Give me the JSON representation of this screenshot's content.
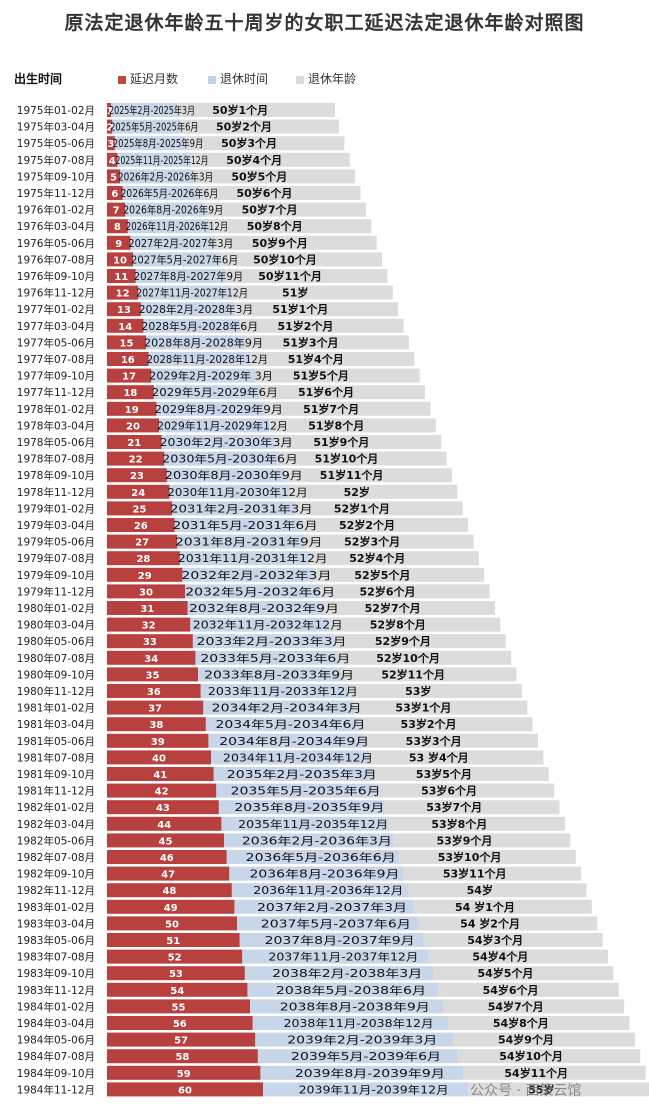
{
  "title": "原法定退休年龄五十周岁的女职工延迟法定退休年龄对照图",
  "legend": {
    "lead": "出生时间",
    "items": [
      {
        "label": "延迟月数",
        "color": "#b94a48"
      },
      {
        "label": "退休时间",
        "color": "#c5d3e6"
      },
      {
        "label": "退休年龄",
        "color": "#d9d9d9"
      }
    ]
  },
  "watermark": "公众号 · 西策云馆",
  "chart_data": {
    "type": "bar",
    "title": "原法定退休年龄五十周岁的女职工延迟法定退休年龄对照图",
    "orientation": "horizontal",
    "stacked": true,
    "categories": [
      "1975年01-02月",
      "1975年03-04月",
      "1975年05-06月",
      "1975年07-08月",
      "1975年09-10月",
      "1975年11-12月",
      "1976年01-02月",
      "1976年03-04月",
      "1976年05-06月",
      "1976年07-08月",
      "1976年09-10月",
      "1976年11-12月",
      "1977年01-02月",
      "1977年03-04月",
      "1977年05-06月",
      "1977年07-08月",
      "1977年09-10月",
      "1977年11-12月",
      "1978年01-02月",
      "1978年03-04月",
      "1978年05-06月",
      "1978年07-08月",
      "1978年09-10月",
      "1978年11-12月",
      "1979年01-02月",
      "1979年03-04月",
      "1979年05-06月",
      "1979年07-08月",
      "1979年09-10月",
      "1979年11-12月",
      "1980年01-02月",
      "1980年03-04月",
      "1980年05-06月",
      "1980年07-08月",
      "1980年09-10月",
      "1980年11-12月",
      "1981年01-02月",
      "1981年03-04月",
      "1981年05-06月",
      "1981年07-08月",
      "1981年09-10月",
      "1981年11-12月",
      "1982年01-02月",
      "1982年03-04月",
      "1982年05-06月",
      "1982年07-08月",
      "1982年09-10月",
      "1982年11-12月",
      "1983年01-02月",
      "1983年03-04月",
      "1983年05-06月",
      "1983年07-08月",
      "1983年09-10月",
      "1983年11-12月",
      "1984年01-02月",
      "1984年03-04月",
      "1984年05-06月",
      "1984年07-08月",
      "1984年09-10月",
      "1984年11-12月"
    ],
    "series": [
      {
        "name": "延迟月数",
        "values": [
          1,
          2,
          3,
          4,
          5,
          6,
          7,
          8,
          9,
          10,
          11,
          12,
          13,
          14,
          15,
          16,
          17,
          18,
          19,
          20,
          21,
          22,
          23,
          24,
          25,
          26,
          27,
          28,
          29,
          30,
          31,
          32,
          33,
          34,
          35,
          36,
          37,
          38,
          39,
          40,
          41,
          42,
          43,
          44,
          45,
          46,
          47,
          48,
          49,
          50,
          51,
          52,
          53,
          54,
          55,
          56,
          57,
          58,
          59,
          60
        ]
      },
      {
        "name": "退休时间",
        "labels": [
          "2025年2月-2025年3月",
          "2025年5月-2025年6月",
          "2025年8月-2025年9月",
          "2025年11月-2025年12月",
          "2026年2月-2026年3月",
          "2026年5月-2026年6月",
          "2026年8月-2026年9月",
          "2026年11月-2026年12月",
          "2027年2月-2027年3月",
          "2027年5月-2027年6月",
          "2027年8月-2027年9月",
          "2027年11月-2027年12月",
          "2028年2月-2028年3月",
          "2028年5月-2028年6月",
          "2028年8月-2028年9月",
          "2028年11月-2028年12月",
          "2029年2月-2029年 3月",
          "2029年5月-2029年6月",
          "2029年8月-2029年9月",
          "2029年11月-2029年12月",
          "2030年2月-2030年3月",
          "2030年5月-2030年6月",
          "2030年8月-2030年9月",
          "2030年11月-2030年12月",
          "2031年2月-2031年3月",
          "2031年5月-2031年6月",
          "2031年8月-2031年9月",
          "2031年11月-2031年12月",
          "2032年2月-2032年3月",
          "2032年5月-2032年6月",
          "2032年8月-2032年9月",
          "2032年11月-2032年12月",
          "2033年2月-2033年3月",
          "2033年5月-2033年6月",
          "2033年8月-2033年9月",
          "2033年11月-2033年12月",
          "2034年2月-2034年3月",
          "2034年5月-2034年6月",
          "2034年8月-2034年9月",
          "2034年11月-2034年12月",
          "2035年2月-2035年3月",
          "2035年5月-2035年6月",
          "2035年8月-2035年9月",
          "2035年11月-2035年12月",
          "2036年2月-2036年3月",
          "2036年5月-2036年6月",
          "2036年8月-2036年9月",
          "2036年11月-2036年12月",
          "2037年2月-2037年3月",
          "2037年5月-2037年6月",
          "2037年8月-2037年9月",
          "2037年11月-2037年12月",
          "2038年2月-2038年3月",
          "2038年5月-2038年6月",
          "2038年8月-2038年9月",
          "2038年11月-2038年12月",
          "2039年2月-2039年3月",
          "2039年5月-2039年6月",
          "2039年8月-2039年9月",
          "2039年11月-2039年12月"
        ]
      },
      {
        "name": "退休年龄",
        "labels": [
          "50岁1个月",
          "50岁2个月",
          "50岁3个月",
          "50岁4个月",
          "50岁5个月",
          "50岁6个月",
          "50岁7个月",
          "50岁8个月",
          "50岁9个月",
          "50岁10个月",
          "50岁11个月",
          "51岁",
          "51岁1个月",
          "51岁2个月",
          "51岁3个月",
          "51岁4个月",
          "51岁5个月",
          "51岁6个月",
          "51岁7个月",
          "51岁8个月",
          "51岁9个月",
          "51岁10个月",
          "51岁11个月",
          "52岁",
          "52岁1个月",
          "52岁2个月",
          "52岁3个月",
          "52岁4个月",
          "52岁5个月",
          "52岁6个月",
          "52岁7个月",
          "52岁8个月",
          "52岁9个月",
          "52岁10个月",
          "52岁11个月",
          "53岁",
          "53岁1个月",
          "53岁2个月",
          "53岁3个月",
          "53 岁4个月",
          "53岁5个月",
          "53岁6个月",
          "53岁7个月",
          "53岁8个月",
          "53岁9个月",
          "53岁10个月",
          "53岁11个月",
          "54岁",
          "54 岁1个月",
          "54 岁2个月",
          "54岁3个月",
          "54岁4个月",
          "54岁5个月",
          "54岁6个月",
          "54岁7个月",
          "54岁8个月",
          "54岁9个月",
          "54岁10个月",
          "54岁11个月",
          "55岁"
        ]
      }
    ],
    "xlabel": "",
    "ylabel": "出生时间",
    "grid": false,
    "legend_position": "top"
  }
}
